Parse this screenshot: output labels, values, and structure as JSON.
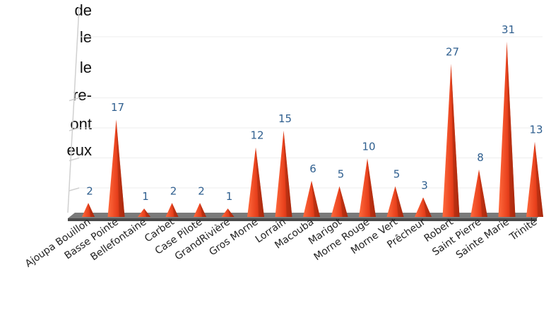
{
  "side_text": [
    "de",
    "le",
    "le",
    "re-",
    "ont",
    "eux"
  ],
  "chart_data": {
    "type": "bar",
    "categories": [
      "Ajoupa Bouillon",
      "Basse Pointe",
      "Bellefontaine",
      "Carbet",
      "Case Pilote",
      "GrandRivière",
      "Gros Morne",
      "Lorrain",
      "Macouba",
      "Marigot",
      "Morne Rouge",
      "Morne Vert",
      "Prêcheur",
      "Robert",
      "Saint Pierre",
      "Sainte Marie",
      "Trinité"
    ],
    "values": [
      2,
      17,
      1,
      2,
      2,
      1,
      12,
      15,
      6,
      5,
      10,
      5,
      3,
      27,
      8,
      31,
      13
    ],
    "title": "",
    "xlabel": "",
    "ylabel": "",
    "ylim": [
      0,
      35
    ],
    "grid": true,
    "colors": {
      "bar": "#e8401c",
      "bar_dark": "#a82a0e",
      "value_label": "#2f5f8f",
      "floor": "#7a7a7a"
    }
  }
}
